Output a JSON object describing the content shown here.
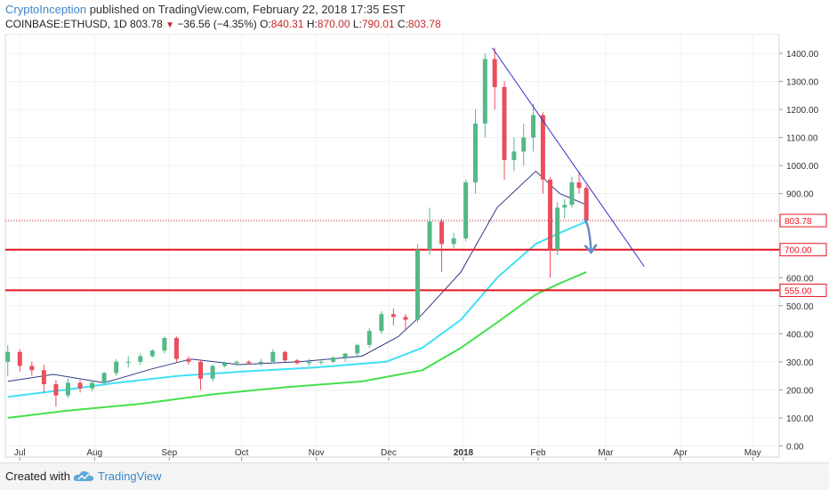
{
  "header": {
    "author": "CryptoInception",
    "published_text": "published on TradingView.com, February 22, 2018 17:35 EST",
    "symbol": "COINBASE:ETHUSD, 1D",
    "last": "803.78",
    "change": "−36.56 (−4.35%)",
    "o_label": "O:",
    "o_value": "840.31",
    "h_label": "H:",
    "h_value": "870.00",
    "l_label": "L:",
    "l_value": "790.01",
    "c_label": "C:",
    "c_value": "803.78"
  },
  "footer": {
    "created_with": "Created with",
    "brand": "TradingView"
  },
  "colors": {
    "up": "#53b987",
    "down": "#eb4d5c",
    "ema_blue": "#2e3a87",
    "ema_cyan": "#3fe0f5",
    "ema_green": "#43e04d",
    "level_red": "#e8141f",
    "trend": "#3131c9",
    "arrow": "#6b86c7"
  },
  "chart_data": {
    "type": "candlestick",
    "title": "",
    "x_tick_labels": [
      "Jul",
      "Aug",
      "Sep",
      "Oct",
      "Nov",
      "Dec",
      "2018",
      "Feb",
      "Mar",
      "Apr",
      "May"
    ],
    "y_tick_labels": [
      "0.00",
      "100.00",
      "200.00",
      "300.00",
      "400.00",
      "500.00",
      "600.00",
      "700.00",
      "800.00",
      "900.00",
      "1000.00",
      "1100.00",
      "1200.00",
      "1300.00",
      "1400.00"
    ],
    "y_range": [
      -40,
      1470
    ],
    "x_range": [
      "2017-06-25",
      "2018-05-12"
    ],
    "price_label": "803.78",
    "price_level": 803.78,
    "levels": [
      {
        "label": "700.00",
        "value": 700
      },
      {
        "label": "555.00",
        "value": 555
      }
    ],
    "trendline": [
      [
        "2018-01-13",
        1420
      ],
      [
        "2018-03-17",
        640
      ]
    ],
    "projection_arrow": [
      [
        "2018-02-20",
        810
      ],
      [
        "2018-02-23",
        690
      ]
    ],
    "candles": [
      [
        "2017-06-26",
        300,
        360,
        250,
        335
      ],
      [
        "2017-07-01",
        335,
        345,
        265,
        285
      ],
      [
        "2017-07-06",
        285,
        300,
        250,
        270
      ],
      [
        "2017-07-11",
        270,
        290,
        190,
        220
      ],
      [
        "2017-07-16",
        220,
        235,
        140,
        180
      ],
      [
        "2017-07-21",
        180,
        240,
        170,
        225
      ],
      [
        "2017-07-26",
        225,
        235,
        190,
        205
      ],
      [
        "2017-07-31",
        205,
        230,
        195,
        225
      ],
      [
        "2017-08-05",
        225,
        265,
        215,
        260
      ],
      [
        "2017-08-10",
        260,
        310,
        250,
        300
      ],
      [
        "2017-08-15",
        300,
        320,
        280,
        300
      ],
      [
        "2017-08-20",
        300,
        330,
        290,
        320
      ],
      [
        "2017-08-25",
        320,
        345,
        315,
        340
      ],
      [
        "2017-08-30",
        340,
        390,
        330,
        385
      ],
      [
        "2017-09-04",
        385,
        390,
        300,
        310
      ],
      [
        "2017-09-09",
        310,
        320,
        290,
        300
      ],
      [
        "2017-09-14",
        300,
        305,
        200,
        240
      ],
      [
        "2017-09-19",
        240,
        290,
        230,
        285
      ],
      [
        "2017-09-24",
        285,
        300,
        280,
        295
      ],
      [
        "2017-09-29",
        295,
        305,
        285,
        300
      ],
      [
        "2017-10-04",
        300,
        305,
        290,
        295
      ],
      [
        "2017-10-09",
        295,
        310,
        285,
        300
      ],
      [
        "2017-10-14",
        300,
        345,
        295,
        335
      ],
      [
        "2017-10-19",
        335,
        340,
        300,
        305
      ],
      [
        "2017-10-24",
        305,
        310,
        290,
        295
      ],
      [
        "2017-10-29",
        295,
        310,
        285,
        300
      ],
      [
        "2017-11-03",
        300,
        310,
        290,
        300
      ],
      [
        "2017-11-08",
        300,
        320,
        295,
        315
      ],
      [
        "2017-11-13",
        315,
        330,
        300,
        330
      ],
      [
        "2017-11-18",
        330,
        365,
        320,
        360
      ],
      [
        "2017-11-23",
        360,
        420,
        350,
        410
      ],
      [
        "2017-11-28",
        410,
        480,
        400,
        470
      ],
      [
        "2017-12-03",
        470,
        490,
        430,
        460
      ],
      [
        "2017-12-08",
        460,
        470,
        410,
        450
      ],
      [
        "2017-12-13",
        450,
        720,
        440,
        700
      ],
      [
        "2017-12-18",
        700,
        850,
        680,
        800
      ],
      [
        "2017-12-23",
        800,
        810,
        620,
        720
      ],
      [
        "2017-12-28",
        720,
        760,
        700,
        740
      ],
      [
        "2018-01-02",
        740,
        950,
        730,
        940
      ],
      [
        "2018-01-06",
        940,
        1200,
        900,
        1150
      ],
      [
        "2018-01-10",
        1150,
        1400,
        1100,
        1380
      ],
      [
        "2018-01-14",
        1380,
        1420,
        1200,
        1280
      ],
      [
        "2018-01-18",
        1280,
        1300,
        950,
        1020
      ],
      [
        "2018-01-22",
        1020,
        1100,
        980,
        1050
      ],
      [
        "2018-01-26",
        1050,
        1150,
        1000,
        1100
      ],
      [
        "2018-01-30",
        1100,
        1220,
        1050,
        1180
      ],
      [
        "2018-02-03",
        1180,
        1190,
        900,
        950
      ],
      [
        "2018-02-06",
        950,
        960,
        600,
        700
      ],
      [
        "2018-02-09",
        700,
        870,
        680,
        850
      ],
      [
        "2018-02-12",
        850,
        880,
        810,
        860
      ],
      [
        "2018-02-15",
        860,
        960,
        850,
        940
      ],
      [
        "2018-02-18",
        940,
        980,
        900,
        920
      ],
      [
        "2018-02-21",
        920,
        930,
        790,
        804
      ]
    ],
    "series": [
      {
        "name": "",
        "color": "#2e3a87",
        "points": [
          [
            "2017-06-26",
            230
          ],
          [
            "2017-07-15",
            255
          ],
          [
            "2017-08-05",
            225
          ],
          [
            "2017-08-25",
            275
          ],
          [
            "2017-09-10",
            310
          ],
          [
            "2017-09-30",
            290
          ],
          [
            "2017-10-25",
            300
          ],
          [
            "2017-11-20",
            320
          ],
          [
            "2017-12-05",
            390
          ],
          [
            "2017-12-15",
            470
          ],
          [
            "2017-12-31",
            620
          ],
          [
            "2018-01-15",
            850
          ],
          [
            "2018-01-31",
            980
          ],
          [
            "2018-02-10",
            900
          ],
          [
            "2018-02-21",
            860
          ]
        ]
      },
      {
        "name": "",
        "color": "#3fe0f5",
        "points": [
          [
            "2017-06-26",
            175
          ],
          [
            "2017-07-20",
            200
          ],
          [
            "2017-08-10",
            225
          ],
          [
            "2017-09-05",
            250
          ],
          [
            "2017-10-01",
            265
          ],
          [
            "2017-11-01",
            280
          ],
          [
            "2017-11-30",
            300
          ],
          [
            "2017-12-15",
            350
          ],
          [
            "2017-12-31",
            450
          ],
          [
            "2018-01-15",
            600
          ],
          [
            "2018-01-31",
            720
          ],
          [
            "2018-02-10",
            760
          ],
          [
            "2018-02-21",
            800
          ]
        ]
      },
      {
        "name": "",
        "color": "#43e04d",
        "points": [
          [
            "2017-06-26",
            100
          ],
          [
            "2017-07-20",
            125
          ],
          [
            "2017-08-20",
            150
          ],
          [
            "2017-09-20",
            185
          ],
          [
            "2017-10-20",
            210
          ],
          [
            "2017-11-20",
            230
          ],
          [
            "2017-12-15",
            270
          ],
          [
            "2017-12-31",
            350
          ],
          [
            "2018-01-15",
            440
          ],
          [
            "2018-01-31",
            540
          ],
          [
            "2018-02-10",
            580
          ],
          [
            "2018-02-21",
            620
          ]
        ]
      }
    ]
  }
}
